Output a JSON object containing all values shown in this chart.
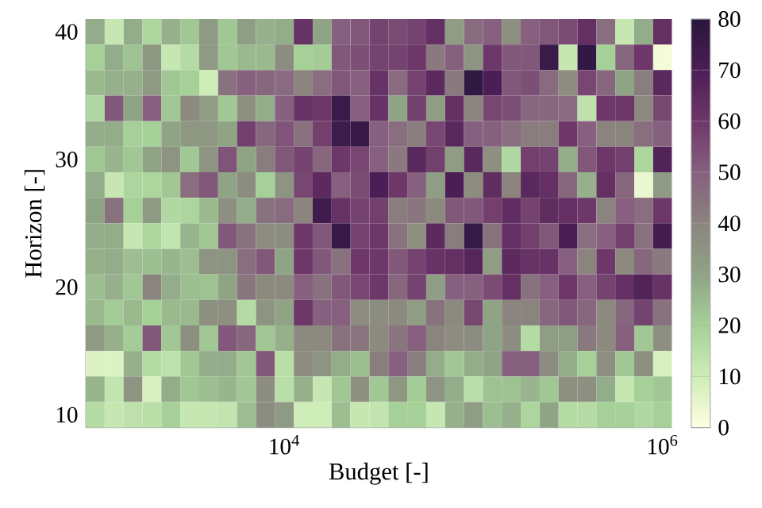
{
  "chart_data": {
    "type": "heatmap",
    "xlabel": "Budget [-]",
    "ylabel": "Horizon [-]",
    "log": "x",
    "x": [
      1000,
      1259,
      1585,
      1995,
      2512,
      3162,
      3981,
      5012,
      6310,
      7943,
      10000,
      12589,
      15849,
      19953,
      25119,
      31623,
      39811,
      50119,
      63096,
      79433,
      100000,
      125893,
      158489,
      199526,
      251189,
      316228,
      398107,
      501187,
      630957,
      794328,
      1000000
    ],
    "y": [
      40,
      38,
      36,
      34,
      32,
      30,
      28,
      26,
      24,
      22,
      20,
      18,
      16,
      14,
      12,
      10
    ],
    "xlim": [
      891,
      1122018
    ],
    "xticks": [
      {
        "value": 10000,
        "label": "10$^{4}$"
      },
      {
        "value": 1000000,
        "label": "10$^{6}$"
      }
    ],
    "ylim": [
      9,
      41
    ],
    "yticks": [
      10,
      20,
      30,
      40
    ],
    "clim": [
      0,
      80
    ],
    "cticks": [
      0,
      10,
      20,
      30,
      40,
      50,
      60,
      70,
      80
    ],
    "cells": [
      [
        28,
        12,
        28,
        18,
        27,
        22,
        33,
        22,
        32,
        27,
        28,
        62,
        30,
        50,
        52,
        57,
        55,
        57,
        63,
        32,
        47,
        50,
        36,
        50,
        52,
        55,
        63,
        46,
        12,
        28,
        63
      ],
      [
        20,
        28,
        23,
        34,
        12,
        16,
        33,
        22,
        25,
        25,
        37,
        20,
        21,
        52,
        54,
        57,
        57,
        60,
        43,
        50,
        35,
        60,
        52,
        52,
        75,
        12,
        77,
        20,
        48,
        60,
        2
      ],
      [
        25,
        27,
        27,
        33,
        22,
        20,
        10,
        45,
        50,
        48,
        47,
        40,
        46,
        52,
        50,
        62,
        47,
        57,
        65,
        43,
        78,
        70,
        52,
        54,
        47,
        37,
        56,
        48,
        30,
        42,
        66
      ],
      [
        17,
        52,
        30,
        50,
        22,
        38,
        32,
        22,
        36,
        28,
        50,
        62,
        60,
        75,
        50,
        62,
        30,
        58,
        32,
        63,
        40,
        56,
        54,
        48,
        48,
        47,
        14,
        60,
        60,
        38,
        56
      ],
      [
        28,
        28,
        20,
        20,
        30,
        34,
        34,
        30,
        58,
        48,
        53,
        45,
        58,
        74,
        76,
        50,
        46,
        42,
        56,
        66,
        50,
        50,
        46,
        42,
        42,
        60,
        50,
        40,
        40,
        46,
        50
      ],
      [
        22,
        26,
        22,
        30,
        35,
        22,
        35,
        53,
        30,
        42,
        52,
        57,
        48,
        60,
        56,
        50,
        43,
        66,
        58,
        32,
        66,
        36,
        17,
        58,
        57,
        28,
        52,
        60,
        58,
        18,
        68
      ],
      [
        28,
        12,
        18,
        18,
        22,
        46,
        52,
        30,
        37,
        20,
        35,
        56,
        65,
        50,
        55,
        70,
        60,
        50,
        32,
        70,
        37,
        64,
        40,
        66,
        63,
        48,
        27,
        63,
        48,
        4,
        33
      ],
      [
        30,
        45,
        20,
        33,
        17,
        18,
        25,
        36,
        28,
        45,
        47,
        40,
        73,
        62,
        57,
        58,
        42,
        44,
        38,
        52,
        52,
        58,
        64,
        57,
        64,
        63,
        60,
        40,
        50,
        46,
        60
      ],
      [
        28,
        28,
        12,
        18,
        13,
        26,
        22,
        52,
        45,
        37,
        37,
        60,
        52,
        76,
        57,
        60,
        45,
        36,
        65,
        42,
        76,
        45,
        63,
        58,
        52,
        70,
        46,
        50,
        58,
        45,
        72
      ],
      [
        27,
        28,
        24,
        24,
        26,
        24,
        35,
        35,
        46,
        52,
        30,
        60,
        52,
        45,
        60,
        60,
        52,
        57,
        62,
        63,
        67,
        32,
        65,
        62,
        62,
        50,
        40,
        60,
        38,
        48,
        43
      ],
      [
        24,
        27,
        22,
        40,
        28,
        24,
        23,
        30,
        44,
        38,
        38,
        50,
        45,
        52,
        56,
        60,
        48,
        57,
        32,
        50,
        50,
        55,
        63,
        45,
        50,
        60,
        50,
        57,
        63,
        68,
        62
      ],
      [
        25,
        21,
        25,
        20,
        25,
        25,
        36,
        36,
        16,
        35,
        30,
        60,
        50,
        50,
        37,
        37,
        38,
        32,
        45,
        38,
        56,
        30,
        40,
        40,
        48,
        52,
        48,
        38,
        48,
        57,
        45
      ],
      [
        33,
        27,
        21,
        52,
        22,
        36,
        22,
        52,
        48,
        22,
        27,
        38,
        38,
        45,
        44,
        38,
        44,
        50,
        40,
        37,
        37,
        30,
        37,
        16,
        32,
        32,
        43,
        38,
        50,
        22,
        36
      ],
      [
        7,
        7,
        27,
        16,
        14,
        22,
        28,
        28,
        22,
        52,
        15,
        37,
        35,
        28,
        24,
        42,
        50,
        42,
        28,
        22,
        28,
        30,
        50,
        50,
        37,
        28,
        20,
        36,
        22,
        36,
        8
      ],
      [
        26,
        13,
        35,
        8,
        28,
        22,
        24,
        26,
        22,
        37,
        15,
        27,
        12,
        22,
        36,
        22,
        34,
        21,
        35,
        28,
        15,
        23,
        23,
        26,
        22,
        36,
        36,
        28,
        12,
        20,
        22
      ],
      [
        16,
        12,
        14,
        15,
        20,
        12,
        12,
        13,
        24,
        37,
        33,
        10,
        10,
        24,
        12,
        13,
        20,
        20,
        12,
        27,
        32,
        24,
        27,
        18,
        30,
        16,
        16,
        20,
        20,
        17,
        20
      ]
    ]
  }
}
